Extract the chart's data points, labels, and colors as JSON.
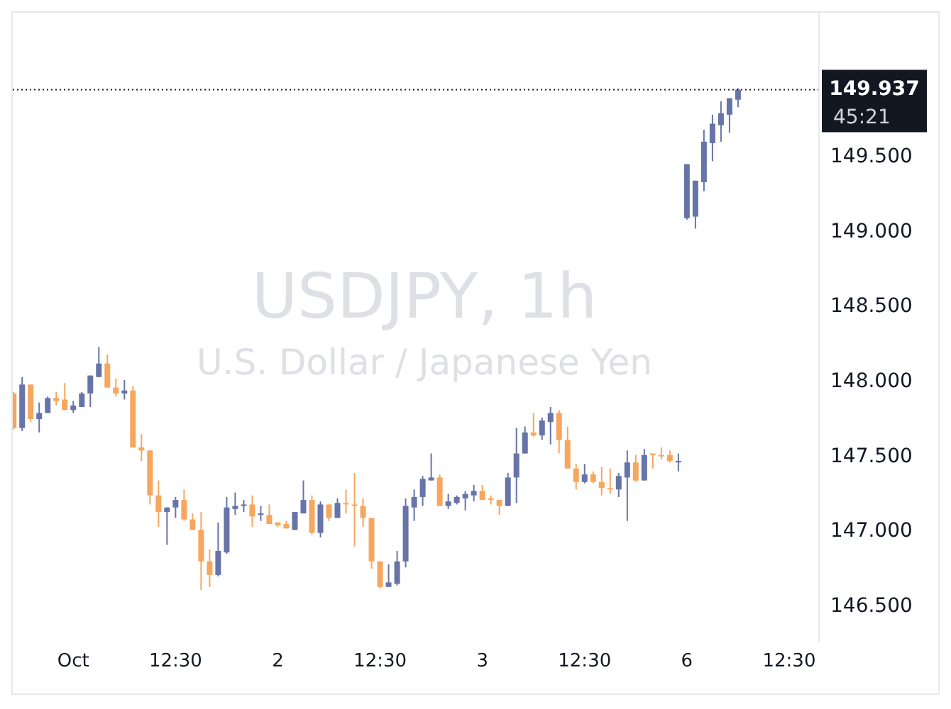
{
  "chart_data": {
    "type": "candlestick",
    "title": "USDJPY, 1h",
    "subtitle": "U.S. Dollar / Japanese Yen",
    "categories": [
      null,
      null,
      null,
      null,
      null,
      null,
      null,
      "Oct",
      null,
      null,
      null,
      null,
      null,
      null,
      null,
      null,
      null,
      null,
      null,
      "12:30",
      null,
      null,
      null,
      null,
      null,
      null,
      null,
      null,
      null,
      null,
      null,
      "2",
      null,
      null,
      null,
      null,
      null,
      null,
      null,
      null,
      null,
      null,
      null,
      "12:30",
      null,
      null,
      null,
      null,
      null,
      null,
      null,
      null,
      null,
      null,
      null,
      "3",
      null,
      null,
      null,
      null,
      null,
      null,
      null,
      null,
      null,
      null,
      null,
      "12:30",
      null,
      null,
      null,
      null,
      null,
      null,
      null,
      null,
      null,
      null,
      null,
      "6",
      null,
      null,
      null,
      null,
      null,
      null,
      null,
      null,
      null,
      null,
      null,
      "12:30",
      null,
      null,
      null
    ],
    "ohlc": [
      [
        147.91,
        147.92,
        147.67,
        147.68
      ],
      [
        147.68,
        148.02,
        147.66,
        147.97
      ],
      [
        147.97,
        147.97,
        147.72,
        147.74
      ],
      [
        147.74,
        147.85,
        147.65,
        147.78
      ],
      [
        147.78,
        147.89,
        147.78,
        147.88
      ],
      [
        147.88,
        147.92,
        147.83,
        147.86
      ],
      [
        147.87,
        147.98,
        147.8,
        147.8
      ],
      [
        147.8,
        147.86,
        147.78,
        147.83
      ],
      [
        147.82,
        147.92,
        147.82,
        147.91
      ],
      [
        147.91,
        148.03,
        147.82,
        148.03
      ],
      [
        148.02,
        148.22,
        148.02,
        148.11
      ],
      [
        148.11,
        148.17,
        147.95,
        147.95
      ],
      [
        147.95,
        148.01,
        147.89,
        147.91
      ],
      [
        147.91,
        148.0,
        147.87,
        147.93
      ],
      [
        147.93,
        147.96,
        147.55,
        147.55
      ],
      [
        147.55,
        147.64,
        147.46,
        147.53
      ],
      [
        147.53,
        147.53,
        147.17,
        147.23
      ],
      [
        147.23,
        147.33,
        147.02,
        147.12
      ],
      [
        147.12,
        147.15,
        146.9,
        147.15
      ],
      [
        147.15,
        147.22,
        147.08,
        147.2
      ],
      [
        147.2,
        147.27,
        147.06,
        147.07
      ],
      [
        147.07,
        147.11,
        147.0,
        147.0
      ],
      [
        147.0,
        147.12,
        146.6,
        146.79
      ],
      [
        146.79,
        146.87,
        146.62,
        146.7
      ],
      [
        146.7,
        147.05,
        146.69,
        146.86
      ],
      [
        146.85,
        147.22,
        146.84,
        147.15
      ],
      [
        147.14,
        147.25,
        147.1,
        147.16
      ],
      [
        147.16,
        147.2,
        147.12,
        147.17
      ],
      [
        147.17,
        147.23,
        147.02,
        147.09
      ],
      [
        147.1,
        147.16,
        147.06,
        147.11
      ],
      [
        147.1,
        147.17,
        147.04,
        147.04
      ],
      [
        147.05,
        147.05,
        147.02,
        147.03
      ],
      [
        147.04,
        147.06,
        147.01,
        147.01
      ],
      [
        147.0,
        147.12,
        147.0,
        147.12
      ],
      [
        147.11,
        147.33,
        147.11,
        147.2
      ],
      [
        147.2,
        147.23,
        146.97,
        146.98
      ],
      [
        146.98,
        147.19,
        146.95,
        147.17
      ],
      [
        147.17,
        147.17,
        147.06,
        147.08
      ],
      [
        147.08,
        147.21,
        147.08,
        147.18
      ],
      [
        147.18,
        147.27,
        147.11,
        147.17
      ],
      [
        147.17,
        147.38,
        146.89,
        147.16
      ],
      [
        147.16,
        147.21,
        147.02,
        147.08
      ],
      [
        147.08,
        147.08,
        146.74,
        146.79
      ],
      [
        146.79,
        146.79,
        146.61,
        146.62
      ],
      [
        146.62,
        146.77,
        146.62,
        146.65
      ],
      [
        146.64,
        146.86,
        146.63,
        146.79
      ],
      [
        146.79,
        147.21,
        146.75,
        147.16
      ],
      [
        147.15,
        147.27,
        147.06,
        147.22
      ],
      [
        147.22,
        147.36,
        147.16,
        147.34
      ],
      [
        147.33,
        147.51,
        147.33,
        147.35
      ],
      [
        147.35,
        147.37,
        147.16,
        147.16
      ],
      [
        147.16,
        147.24,
        147.14,
        147.19
      ],
      [
        147.18,
        147.23,
        147.17,
        147.22
      ],
      [
        147.21,
        147.26,
        147.13,
        147.24
      ],
      [
        147.23,
        147.3,
        147.19,
        147.26
      ],
      [
        147.26,
        147.3,
        147.2,
        147.2
      ],
      [
        147.21,
        147.23,
        147.17,
        147.2
      ],
      [
        147.2,
        147.2,
        147.1,
        147.16
      ],
      [
        147.16,
        147.38,
        147.16,
        147.35
      ],
      [
        147.35,
        147.68,
        147.18,
        147.51
      ],
      [
        147.51,
        147.69,
        147.51,
        147.65
      ],
      [
        147.65,
        147.78,
        147.62,
        147.63
      ],
      [
        147.63,
        147.75,
        147.6,
        147.73
      ],
      [
        147.72,
        147.82,
        147.57,
        147.78
      ],
      [
        147.78,
        147.8,
        147.51,
        147.6
      ],
      [
        147.6,
        147.69,
        147.41,
        147.41
      ],
      [
        147.41,
        147.44,
        147.27,
        147.32
      ],
      [
        147.32,
        147.44,
        147.31,
        147.37
      ],
      [
        147.37,
        147.39,
        147.31,
        147.32
      ],
      [
        147.32,
        147.42,
        147.23,
        147.28
      ],
      [
        147.28,
        147.41,
        147.24,
        147.27
      ],
      [
        147.27,
        147.38,
        147.22,
        147.36
      ],
      [
        147.35,
        147.53,
        147.06,
        147.45
      ],
      [
        147.45,
        147.5,
        147.32,
        147.33
      ],
      [
        147.33,
        147.54,
        147.33,
        147.5
      ],
      [
        147.51,
        147.51,
        147.41,
        147.5
      ],
      [
        147.5,
        147.55,
        147.47,
        147.49
      ],
      [
        147.5,
        147.53,
        147.45,
        147.46
      ],
      [
        147.45,
        147.51,
        147.39,
        147.46
      ],
      [
        149.08,
        149.44,
        149.07,
        149.44
      ],
      [
        149.09,
        149.33,
        149.01,
        149.33
      ],
      [
        149.32,
        149.67,
        149.26,
        149.59
      ],
      [
        149.58,
        149.77,
        149.46,
        149.71
      ],
      [
        149.7,
        149.86,
        149.59,
        149.78
      ],
      [
        149.77,
        149.88,
        149.65,
        149.88
      ],
      [
        149.87,
        149.946,
        149.82,
        149.937
      ],
      null,
      null,
      null,
      null,
      null,
      null,
      null,
      null,
      null
    ],
    "colors": [
      "#f7a65e",
      "#6674a8",
      "#f7a65e",
      "#6674a8",
      "#6674a8",
      "#f7a65e",
      "#f7a65e",
      "#6674a8",
      "#6674a8",
      "#6674a8",
      "#6674a8",
      "#f7a65e",
      "#f7a65e",
      "#6674a8",
      "#f7a65e",
      "#f7a65e",
      "#f7a65e",
      "#f7a65e",
      "#6674a8",
      "#6674a8",
      "#f7a65e",
      "#f7a65e",
      "#f7a65e",
      "#f7a65e",
      "#6674a8",
      "#6674a8",
      "#6674a8",
      "#6674a8",
      "#f7a65e",
      "#6674a8",
      "#f7a65e",
      "#f7a65e",
      "#f7a65e",
      "#6674a8",
      "#6674a8",
      "#f7a65e",
      "#6674a8",
      "#f7a65e",
      "#6674a8",
      "#f7a65e",
      "#f7a65e",
      "#f7a65e",
      "#f7a65e",
      "#f7a65e",
      "#6674a8",
      "#6674a8",
      "#6674a8",
      "#6674a8",
      "#6674a8",
      "#6674a8",
      "#f7a65e",
      "#6674a8",
      "#6674a8",
      "#6674a8",
      "#6674a8",
      "#f7a65e",
      "#f7a65e",
      "#f7a65e",
      "#6674a8",
      "#6674a8",
      "#6674a8",
      "#f7a65e",
      "#6674a8",
      "#6674a8",
      "#f7a65e",
      "#f7a65e",
      "#f7a65e",
      "#6674a8",
      "#f7a65e",
      "#f7a65e",
      "#f7a65e",
      "#6674a8",
      "#6674a8",
      "#f7a65e",
      "#6674a8",
      "#f7a65e",
      "#f7a65e",
      "#f7a65e",
      "#6674a8",
      "#6674a8",
      "#6674a8",
      "#6674a8",
      "#6674a8",
      "#6674a8",
      "#6674a8",
      "#6674a8",
      null,
      null,
      null,
      null,
      null,
      null,
      null,
      null,
      null
    ],
    "ylim": [
      146.25,
      150.45
    ],
    "yticks": [
      {
        "value": 146.5,
        "label": "146.500"
      },
      {
        "value": 147,
        "label": "147.000"
      },
      {
        "value": 147.5,
        "label": "147.500"
      },
      {
        "value": 148,
        "label": "148.000"
      },
      {
        "value": 148.5,
        "label": "148.500"
      },
      {
        "value": 149,
        "label": "149.000"
      },
      {
        "value": 149.5,
        "label": "149.500"
      }
    ],
    "ref_lines": [
      {
        "axis": "y",
        "value": 149.937,
        "label": "149.937",
        "color": "#131722",
        "line_style": "dotted"
      }
    ],
    "annotations": [
      "45:21"
    ],
    "relative": false
  }
}
